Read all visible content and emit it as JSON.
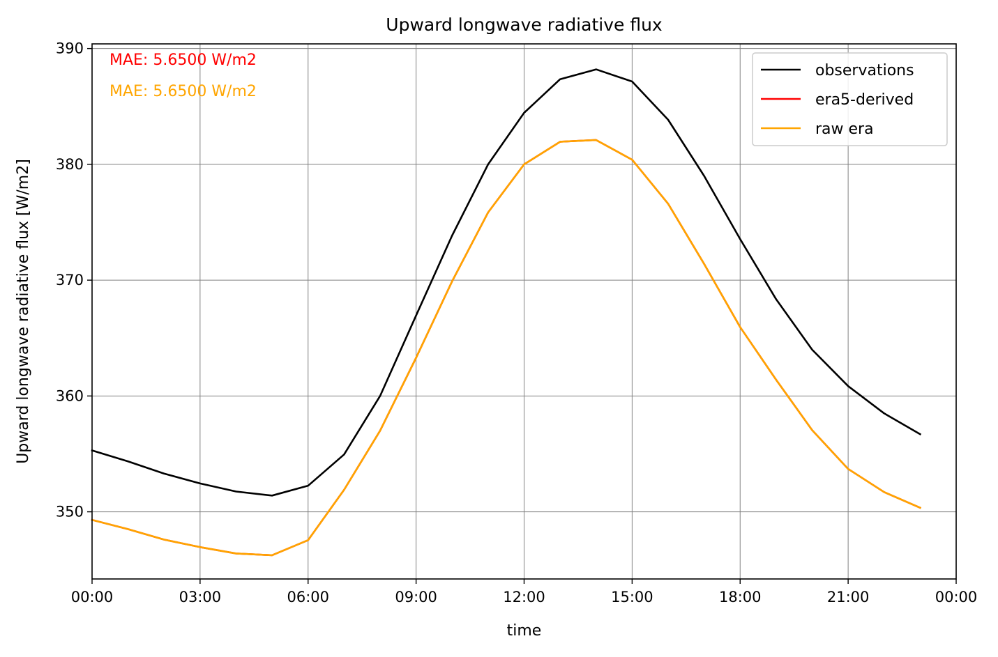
{
  "chart_data": {
    "type": "line",
    "title": "Upward longwave radiative flux",
    "xlabel": "time",
    "ylabel": "Upward longwave radiative flux [W/m2]",
    "x_hours": [
      0,
      1,
      2,
      3,
      4,
      5,
      6,
      7,
      8,
      9,
      10,
      11,
      12,
      13,
      14,
      15,
      16,
      17,
      18,
      19,
      20,
      21,
      22,
      23
    ],
    "xlim_hours": [
      0,
      24
    ],
    "ylim": [
      344.2,
      390.4
    ],
    "xticks": [
      {
        "hour": 0,
        "label": "00:00"
      },
      {
        "hour": 3,
        "label": "03:00"
      },
      {
        "hour": 6,
        "label": "06:00"
      },
      {
        "hour": 9,
        "label": "09:00"
      },
      {
        "hour": 12,
        "label": "12:00"
      },
      {
        "hour": 15,
        "label": "15:00"
      },
      {
        "hour": 18,
        "label": "18:00"
      },
      {
        "hour": 21,
        "label": "21:00"
      },
      {
        "hour": 24,
        "label": "00:00"
      }
    ],
    "yticks": [
      {
        "value": 350,
        "label": "350"
      },
      {
        "value": 360,
        "label": "360"
      },
      {
        "value": 370,
        "label": "370"
      },
      {
        "value": 380,
        "label": "380"
      },
      {
        "value": 390,
        "label": "390"
      }
    ],
    "grid": true,
    "legend_position": "top-right",
    "series": [
      {
        "name": "observations",
        "color": "#000000",
        "values": [
          355.3,
          354.35,
          353.3,
          352.45,
          351.75,
          351.4,
          352.25,
          354.95,
          360.0,
          366.95,
          373.85,
          380.0,
          384.45,
          387.35,
          388.2,
          387.15,
          383.85,
          379.0,
          373.55,
          368.35,
          364.0,
          360.85,
          358.5,
          356.7
        ]
      },
      {
        "name": "era5-derived",
        "color": "#ff0000",
        "values": [
          349.3,
          348.5,
          347.6,
          346.95,
          346.4,
          346.25,
          347.55,
          351.9,
          357.0,
          363.3,
          369.9,
          375.85,
          380.0,
          381.95,
          382.1,
          380.4,
          376.6,
          371.4,
          365.95,
          361.4,
          357.05,
          353.7,
          351.7,
          350.35
        ]
      },
      {
        "name": "raw era",
        "color": "#ffa500",
        "values": [
          349.3,
          348.5,
          347.6,
          346.95,
          346.4,
          346.25,
          347.55,
          351.9,
          357.0,
          363.3,
          369.9,
          375.85,
          380.0,
          381.95,
          382.1,
          380.4,
          376.6,
          371.4,
          365.95,
          361.4,
          357.05,
          353.7,
          351.7,
          350.35
        ]
      }
    ],
    "annotations": [
      {
        "text": "MAE: 5.6500 W/m2",
        "color": "#ff0000"
      },
      {
        "text": "MAE: 5.6500 W/m2",
        "color": "#ffa500"
      }
    ]
  }
}
